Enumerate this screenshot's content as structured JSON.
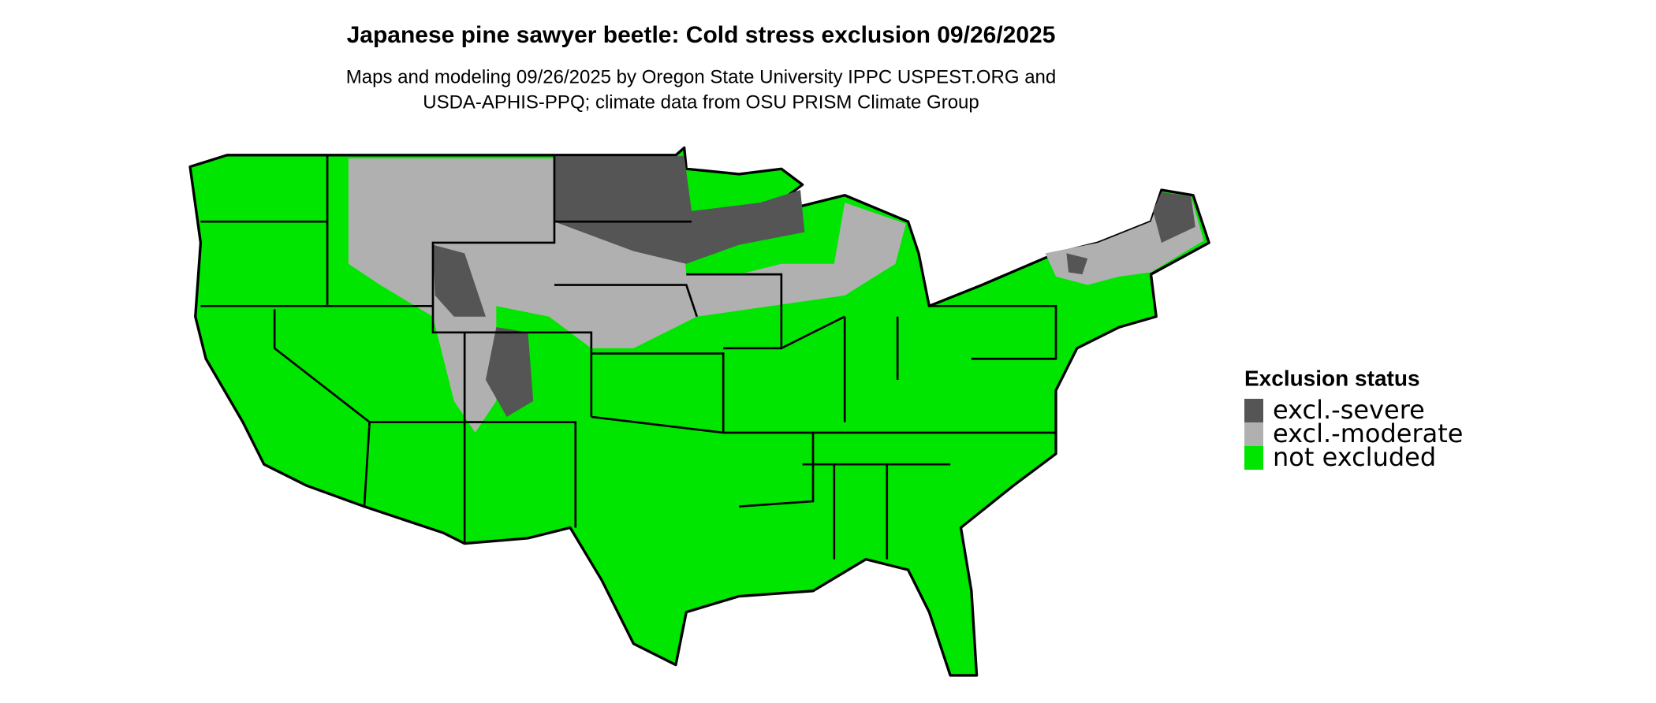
{
  "title": "Japanese pine sawyer beetle: Cold stress exclusion 09/26/2025",
  "subtitle": [
    "Maps and modeling 09/26/2025 by Oregon State University IPPC USPEST.ORG and",
    "USDA-APHIS-PPQ; climate data from OSU PRISM Climate Group"
  ],
  "legend": {
    "title": "Exclusion status",
    "items": [
      {
        "label": "excl.-severe",
        "color": "#555555"
      },
      {
        "label": "excl.-moderate",
        "color": "#b0b0b0"
      },
      {
        "label": "not excluded",
        "color": "#00e600"
      }
    ]
  }
}
